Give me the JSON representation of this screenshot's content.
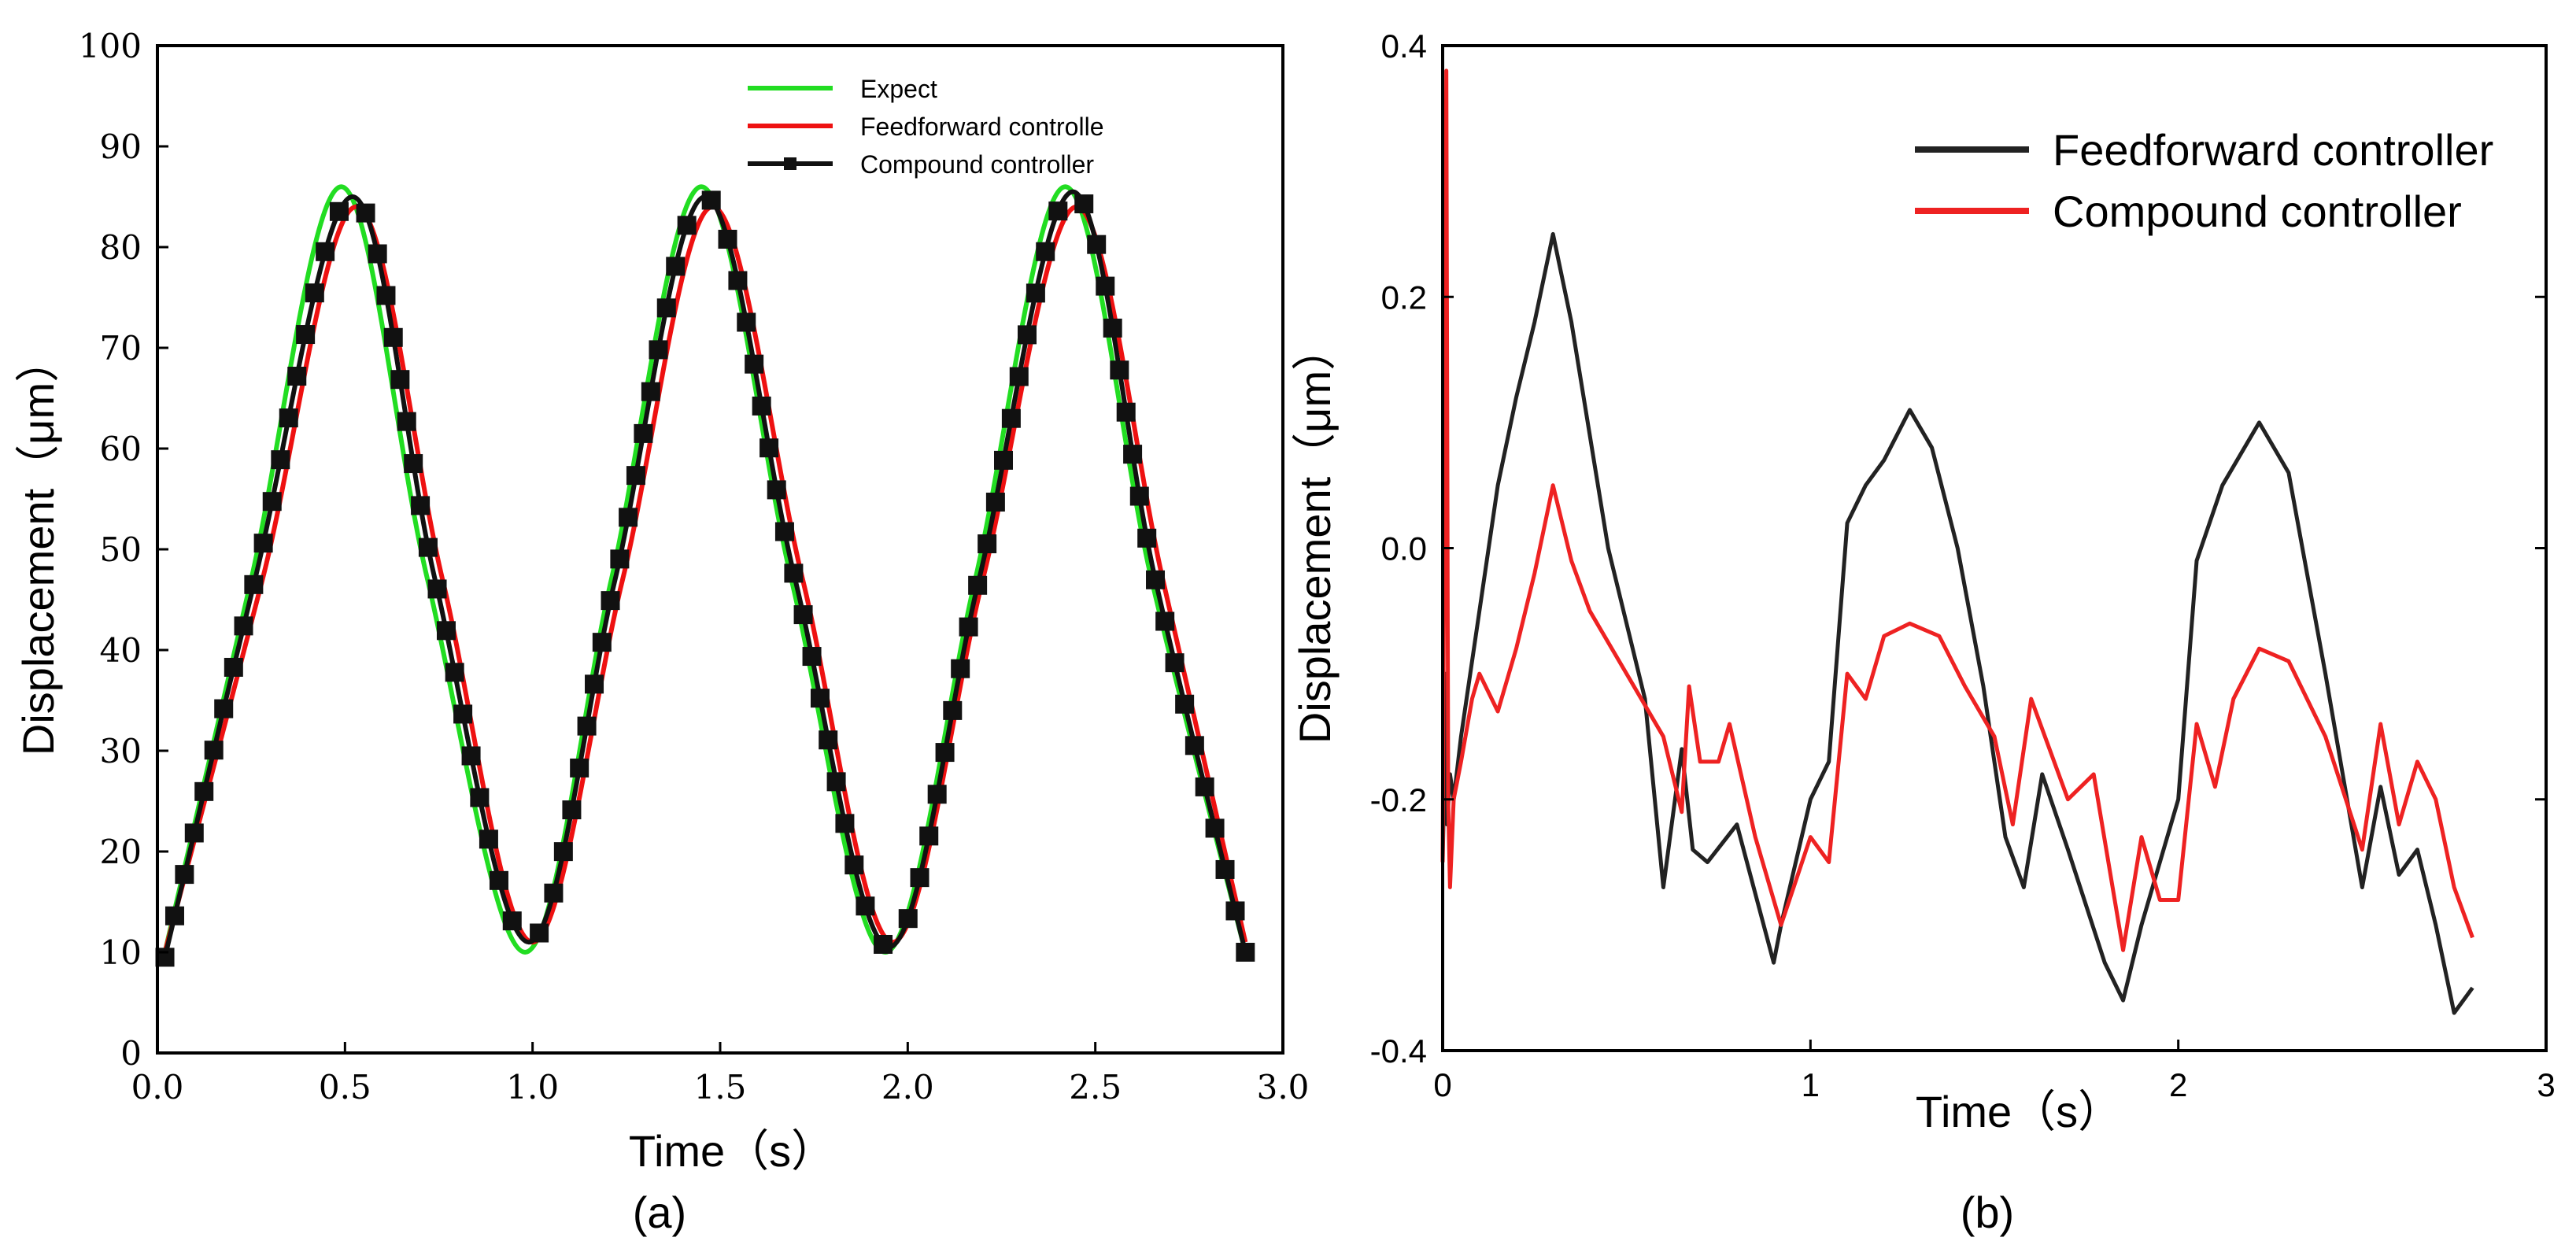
{
  "chart_data": [
    {
      "type": "line",
      "panel": "(a)",
      "xlabel": "Time（s）",
      "ylabel": "Displacement（μm）",
      "xlim": [
        0,
        3
      ],
      "ylim": [
        0,
        100
      ],
      "xticks": [
        0,
        0.5,
        1,
        1.5,
        2,
        2.5,
        3
      ],
      "xtick_labels": [
        "0.0",
        "0.5",
        "1.0",
        "1.5",
        "2.0",
        "2.5",
        "3.0"
      ],
      "yticks": [
        0,
        10,
        20,
        30,
        40,
        50,
        60,
        70,
        80,
        90,
        100
      ],
      "ytick_labels": [
        "0",
        "10",
        "20",
        "30",
        "40",
        "50",
        "60",
        "70",
        "80",
        "90",
        "100"
      ],
      "legend_position": "top-right",
      "series": [
        {
          "name": "Expect",
          "color": "#22dd22",
          "marker": "none",
          "x": [
            0.02,
            0.25,
            0.49,
            0.72,
            0.98,
            1.21,
            1.45,
            1.69,
            1.94,
            2.18,
            2.42,
            2.65,
            2.9
          ],
          "y": [
            10,
            47,
            86,
            47,
            10,
            47,
            86,
            47,
            10,
            47,
            86,
            47,
            10
          ]
        },
        {
          "name": "Feedforward controlle",
          "color": "#ee1111",
          "marker": "none",
          "x": [
            0.02,
            0.28,
            0.53,
            0.76,
            1.0,
            1.24,
            1.48,
            1.72,
            1.96,
            2.2,
            2.45,
            2.68,
            2.9
          ],
          "y": [
            10,
            47,
            84,
            47,
            11,
            47,
            84,
            47,
            11,
            47,
            84,
            47,
            11
          ]
        },
        {
          "name": "Compound controller",
          "color": "#111111",
          "marker": "square",
          "x": [
            0.02,
            0.26,
            0.52,
            0.74,
            0.99,
            1.22,
            1.46,
            1.7,
            1.95,
            2.19,
            2.44,
            2.66,
            2.9
          ],
          "y": [
            9.5,
            47,
            85,
            47,
            11,
            47,
            85,
            47,
            10.5,
            47,
            85.5,
            47,
            10
          ]
        }
      ]
    },
    {
      "type": "line",
      "panel": "(b)",
      "xlabel": "Time（s）",
      "ylabel": "Displacement（μm）",
      "xlim": [
        0,
        3
      ],
      "ylim": [
        -0.4,
        0.4
      ],
      "xticks": [
        0,
        1,
        2,
        3
      ],
      "xtick_labels": [
        "0",
        "1",
        "2",
        "3"
      ],
      "yticks": [
        -0.4,
        -0.2,
        0,
        0.2,
        0.4
      ],
      "ytick_labels": [
        "-0.4",
        "-0.2",
        "0.0",
        "0.2",
        "0.4"
      ],
      "legend_position": "top-right",
      "series": [
        {
          "name": "Feedforward controller",
          "color": "#222222",
          "x": [
            0.0,
            0.01,
            0.012,
            0.02,
            0.03,
            0.05,
            0.1,
            0.15,
            0.2,
            0.25,
            0.3,
            0.35,
            0.45,
            0.55,
            0.6,
            0.65,
            0.68,
            0.72,
            0.8,
            0.9,
            0.92,
            1.0,
            1.05,
            1.1,
            1.15,
            1.2,
            1.27,
            1.33,
            1.4,
            1.47,
            1.53,
            1.58,
            1.63,
            1.7,
            1.8,
            1.85,
            1.9,
            1.95,
            2.0,
            2.05,
            2.12,
            2.22,
            2.3,
            2.4,
            2.5,
            2.55,
            2.6,
            2.65,
            2.7,
            2.75,
            2.8
          ],
          "y": [
            -0.25,
            -0.1,
            -0.22,
            -0.18,
            -0.2,
            -0.15,
            -0.05,
            0.05,
            0.12,
            0.18,
            0.25,
            0.18,
            0.0,
            -0.12,
            -0.27,
            -0.16,
            -0.24,
            -0.25,
            -0.22,
            -0.33,
            -0.3,
            -0.2,
            -0.17,
            0.02,
            0.05,
            0.07,
            0.11,
            0.08,
            0.0,
            -0.11,
            -0.23,
            -0.27,
            -0.18,
            -0.24,
            -0.33,
            -0.36,
            -0.3,
            -0.25,
            -0.2,
            -0.01,
            0.05,
            0.1,
            0.06,
            -0.1,
            -0.27,
            -0.19,
            -0.26,
            -0.24,
            -0.3,
            -0.37,
            -0.35
          ]
        },
        {
          "name": "Compound controller",
          "color": "#ee2222",
          "x": [
            0.0,
            0.01,
            0.015,
            0.02,
            0.03,
            0.05,
            0.08,
            0.1,
            0.15,
            0.2,
            0.25,
            0.3,
            0.35,
            0.4,
            0.5,
            0.6,
            0.65,
            0.67,
            0.7,
            0.75,
            0.78,
            0.85,
            0.92,
            1.0,
            1.05,
            1.1,
            1.15,
            1.2,
            1.27,
            1.35,
            1.42,
            1.5,
            1.55,
            1.6,
            1.65,
            1.7,
            1.77,
            1.85,
            1.9,
            1.95,
            2.0,
            2.05,
            2.1,
            2.15,
            2.22,
            2.3,
            2.4,
            2.5,
            2.55,
            2.6,
            2.65,
            2.7,
            2.75,
            2.8
          ],
          "y": [
            -0.25,
            0.38,
            -0.2,
            -0.27,
            -0.2,
            -0.17,
            -0.12,
            -0.1,
            -0.13,
            -0.08,
            -0.02,
            0.05,
            -0.01,
            -0.05,
            -0.1,
            -0.15,
            -0.21,
            -0.11,
            -0.17,
            -0.17,
            -0.14,
            -0.23,
            -0.3,
            -0.23,
            -0.25,
            -0.1,
            -0.12,
            -0.07,
            -0.06,
            -0.07,
            -0.11,
            -0.15,
            -0.22,
            -0.12,
            -0.16,
            -0.2,
            -0.18,
            -0.32,
            -0.23,
            -0.28,
            -0.28,
            -0.14,
            -0.19,
            -0.12,
            -0.08,
            -0.09,
            -0.15,
            -0.24,
            -0.14,
            -0.22,
            -0.17,
            -0.2,
            -0.27,
            -0.31
          ]
        }
      ]
    }
  ]
}
